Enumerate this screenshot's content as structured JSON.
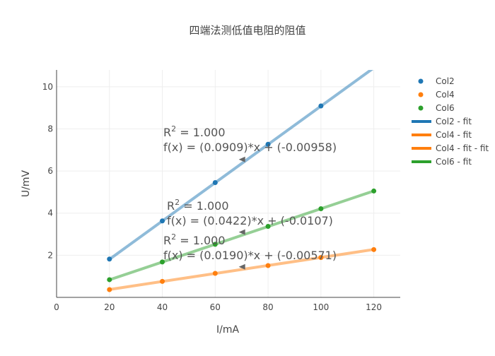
{
  "chart_data": {
    "type": "scatter",
    "title": "四端法测低值电阻的阻值",
    "xlabel": "I/mA",
    "ylabel": "U/mV",
    "xlim": [
      0,
      130
    ],
    "ylim": [
      0,
      10.8
    ],
    "x_ticks": [
      0,
      20,
      40,
      60,
      80,
      100,
      120
    ],
    "y_ticks": [
      2,
      4,
      6,
      8,
      10
    ],
    "grid": true,
    "legend_position": "top-right",
    "series": [
      {
        "name": "Col2",
        "color": "#1f77b4",
        "x": [
          20,
          40,
          60,
          80,
          100
        ],
        "y": [
          1.82,
          3.63,
          5.45,
          7.27,
          9.09
        ]
      },
      {
        "name": "Col4",
        "color": "#ff7f0e",
        "x": [
          20,
          40,
          60,
          80,
          100,
          120
        ],
        "y": [
          0.37,
          0.76,
          1.14,
          1.51,
          1.89,
          2.27
        ]
      },
      {
        "name": "Col6",
        "color": "#2ca02c",
        "x": [
          20,
          40,
          60,
          80,
          100,
          120
        ],
        "y": [
          0.84,
          1.68,
          2.52,
          3.37,
          4.21,
          5.05
        ]
      }
    ],
    "fits": [
      {
        "name": "Col2 - fit",
        "color": "#1f77b4",
        "slope": 0.0909,
        "intercept": -0.00958,
        "x_range": [
          20,
          120
        ]
      },
      {
        "name": "Col4 - fit",
        "color": "#ff7f0e",
        "slope": 0.019,
        "intercept": -0.00571,
        "x_range": [
          20,
          120
        ]
      },
      {
        "name": "Col4 - fit - fit",
        "color": "#ff7f0e",
        "slope": 0.019,
        "intercept": -0.00571,
        "x_range": [
          20,
          120
        ]
      },
      {
        "name": "Col6 - fit",
        "color": "#2ca02c",
        "slope": 0.0422,
        "intercept": -0.0107,
        "x_range": [
          20,
          120
        ]
      }
    ],
    "annotations": [
      {
        "r2_prefix": "R",
        "r2_sup": "2",
        "r2_suffix": " = 1.000",
        "equation": "f(x) = (0.0909)*x + (-0.00958)",
        "arrow_x": 70,
        "arrow_y": 6.55
      },
      {
        "r2_prefix": "R",
        "r2_sup": "2",
        "r2_suffix": " = 1.000",
        "equation": "f(x) = (0.0422)*x + (-0.0107)",
        "arrow_x": 70,
        "arrow_y": 3.1
      },
      {
        "r2_prefix": "R",
        "r2_sup": "2",
        "r2_suffix": " = 1.000",
        "equation": "f(x) = (0.0190)*x + (-0.00571)",
        "arrow_x": 70,
        "arrow_y": 1.45
      }
    ]
  },
  "legend": {
    "items": [
      {
        "label": "Col2",
        "kind": "marker",
        "color": "#1f77b4"
      },
      {
        "label": "Col4",
        "kind": "marker",
        "color": "#ff7f0e"
      },
      {
        "label": "Col6",
        "kind": "marker",
        "color": "#2ca02c"
      },
      {
        "label": "Col2 - fit",
        "kind": "line",
        "color": "#1f77b4"
      },
      {
        "label": "Col4 - fit",
        "kind": "line",
        "color": "#ff7f0e"
      },
      {
        "label": "Col4 - fit - fit",
        "kind": "line",
        "color": "#ff7f0e"
      },
      {
        "label": "Col6 - fit",
        "kind": "line",
        "color": "#2ca02c"
      }
    ]
  }
}
